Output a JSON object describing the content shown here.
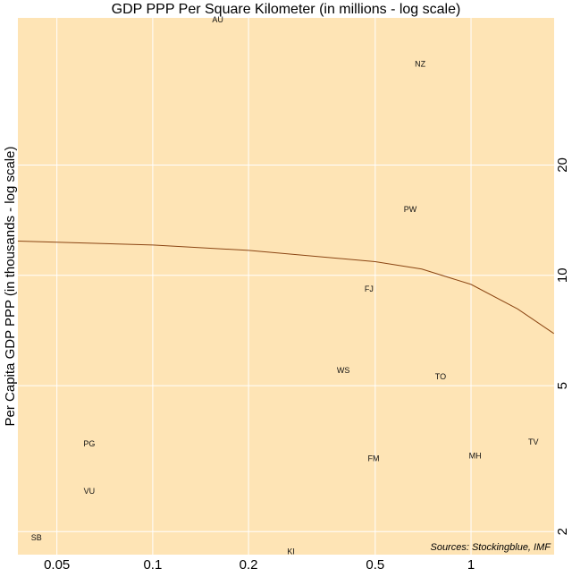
{
  "chart_data": {
    "type": "scatter",
    "title": "GDP PPP Per Square Kilometer (in millions - log scale)",
    "y_label": "Per Capita GDP PPP (in thousands - log scale)",
    "annotation": "Sources: Stockingblue, IMF",
    "labels": [
      "AU",
      "NZ",
      "PW",
      "FJ",
      "WS",
      "TO",
      "TV",
      "MH",
      "FM",
      "PG",
      "VU",
      "SB",
      "KI"
    ],
    "x": [
      0.16,
      0.692,
      0.644,
      0.478,
      0.397,
      0.802,
      1.57,
      1.03,
      0.494,
      0.0632,
      0.0632,
      0.0431,
      0.272
    ],
    "y": [
      49.6,
      37.6,
      15.1,
      9.14,
      5.48,
      5.27,
      3.5,
      3.21,
      3.15,
      3.46,
      2.57,
      1.92,
      1.76
    ],
    "trend": {
      "color": "#8b4513",
      "x": [
        0.0377,
        0.1,
        0.2,
        0.5,
        0.7,
        1,
        1.4,
        1.82
      ],
      "y": [
        12.4,
        12.1,
        11.7,
        10.9,
        10.4,
        9.45,
        8.1,
        6.94
      ]
    },
    "xlim": [
      0.0377,
      1.824
    ],
    "ylim": [
      1.73,
      50.4
    ],
    "xticks": [
      0.05,
      0.1,
      0.2,
      0.5,
      1
    ],
    "yticks": [
      2,
      5,
      10,
      20
    ],
    "xlog": true,
    "ylog": true,
    "grid": true,
    "background": "#fee4b5"
  }
}
